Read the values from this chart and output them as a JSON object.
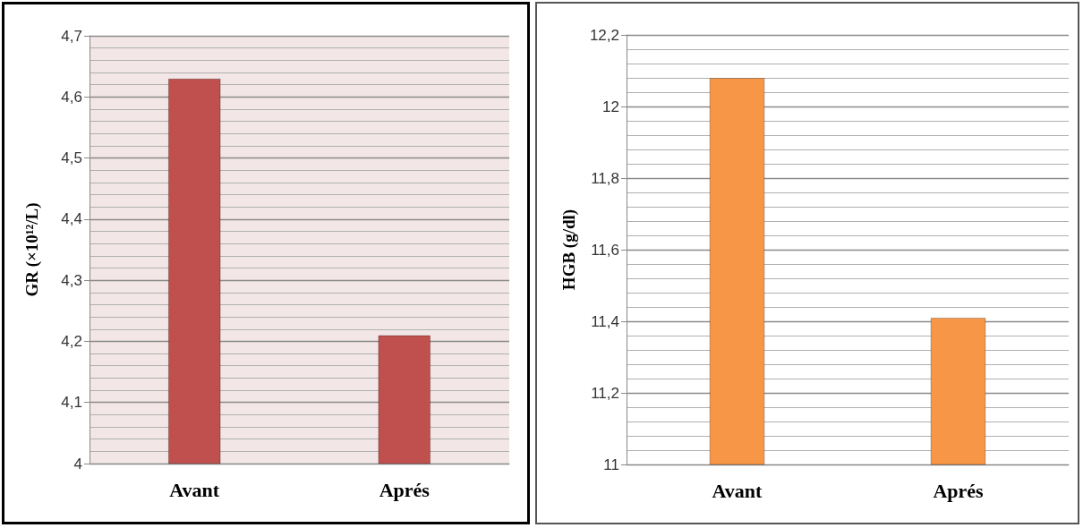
{
  "chart_data": [
    {
      "type": "bar",
      "categories": [
        "Avant",
        "Aprés"
      ],
      "values": [
        4.63,
        4.21
      ],
      "color": "#c0504d",
      "ylabel": "GR (×10¹²/L)",
      "ylim": [
        4,
        4.7
      ],
      "yticks": [
        4,
        {
          "value": 4.1,
          "label": "4,1"
        },
        {
          "value": 4.2,
          "label": "4,2"
        },
        {
          "value": 4.3,
          "label": "4,3"
        },
        {
          "value": 4.4,
          "label": "4,4"
        },
        {
          "value": 4.5,
          "label": "4,5"
        },
        {
          "value": 4.6,
          "label": "4,6"
        },
        {
          "value": 4.7,
          "label": "4,7"
        }
      ],
      "grid": true
    },
    {
      "type": "bar",
      "categories": [
        "Avant",
        "Aprés"
      ],
      "values": [
        12.08,
        11.41
      ],
      "color": "#f79646",
      "ylabel": "HGB (g/dl)",
      "ylim": [
        11,
        12.2
      ],
      "yticks": [
        11,
        {
          "value": 11.2,
          "label": "11,2"
        },
        {
          "value": 11.4,
          "label": "11,4"
        },
        {
          "value": 11.6,
          "label": "11,6"
        },
        {
          "value": 11.8,
          "label": "11,8"
        },
        12,
        {
          "value": 12.2,
          "label": "12,2"
        }
      ],
      "grid": true
    }
  ]
}
